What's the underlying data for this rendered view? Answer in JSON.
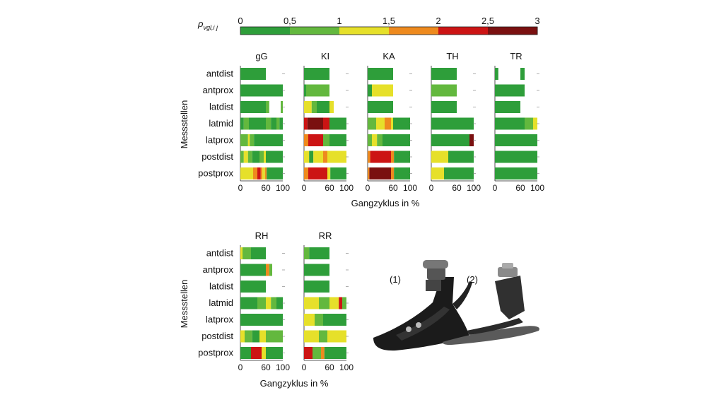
{
  "chart_data": {
    "type": "heatmap",
    "colorbar": {
      "label": "ρvgl,i j",
      "ticks": [
        "0",
        "0,5",
        "1",
        "1,5",
        "2",
        "2,5",
        "3"
      ],
      "colors": [
        "#2e9e3a",
        "#63b83e",
        "#e6e02a",
        "#ee8a1e",
        "#cc1414",
        "#7a1010"
      ]
    },
    "rows": [
      "antdist",
      "antprox",
      "latdist",
      "latmid",
      "latprox",
      "postdist",
      "postprox"
    ],
    "ylabel": "Messstellen",
    "xlabel": "Gangzyklus in %",
    "xticks": [
      "0",
      "60",
      "100"
    ],
    "panels": [
      {
        "title": "gG",
        "rows": [
          [
            [
              0,
              60,
              0
            ]
          ],
          [
            [
              0,
              100,
              0
            ]
          ],
          [
            [
              0,
              60,
              0
            ],
            [
              60,
              68,
              1
            ],
            [
              68,
              95,
              null
            ],
            [
              95,
              100,
              1
            ]
          ],
          [
            [
              0,
              8,
              0
            ],
            [
              8,
              20,
              1
            ],
            [
              20,
              60,
              0
            ],
            [
              60,
              72,
              1
            ],
            [
              72,
              85,
              0
            ],
            [
              85,
              92,
              1
            ],
            [
              92,
              100,
              0
            ]
          ],
          [
            [
              0,
              18,
              1
            ],
            [
              18,
              22,
              2
            ],
            [
              22,
              32,
              1
            ],
            [
              32,
              60,
              0
            ],
            [
              60,
              100,
              0
            ]
          ],
          [
            [
              0,
              8,
              1
            ],
            [
              8,
              18,
              2
            ],
            [
              18,
              28,
              1
            ],
            [
              28,
              45,
              0
            ],
            [
              45,
              55,
              1
            ],
            [
              55,
              60,
              2
            ],
            [
              60,
              100,
              0
            ]
          ],
          [
            [
              0,
              30,
              2
            ],
            [
              30,
              40,
              3
            ],
            [
              40,
              48,
              4
            ],
            [
              48,
              52,
              3
            ],
            [
              52,
              58,
              2
            ],
            [
              58,
              62,
              3
            ],
            [
              62,
              100,
              0
            ]
          ]
        ]
      },
      {
        "title": "KI",
        "rows": [
          [
            [
              0,
              60,
              0
            ]
          ],
          [
            [
              0,
              5,
              0
            ],
            [
              5,
              60,
              1
            ],
            [
              60,
              100,
              null
            ]
          ],
          [
            [
              0,
              18,
              2
            ],
            [
              18,
              30,
              1
            ],
            [
              30,
              60,
              0
            ],
            [
              60,
              70,
              2
            ],
            [
              70,
              100,
              null
            ]
          ],
          [
            [
              0,
              8,
              4
            ],
            [
              8,
              45,
              5
            ],
            [
              45,
              60,
              4
            ],
            [
              60,
              100,
              0
            ]
          ],
          [
            [
              0,
              10,
              3
            ],
            [
              10,
              45,
              4
            ],
            [
              45,
              60,
              1
            ],
            [
              60,
              100,
              0
            ]
          ],
          [
            [
              0,
              12,
              2
            ],
            [
              12,
              22,
              0
            ],
            [
              22,
              45,
              2
            ],
            [
              45,
              55,
              3
            ],
            [
              55,
              100,
              2
            ]
          ],
          [
            [
              0,
              10,
              3
            ],
            [
              10,
              55,
              4
            ],
            [
              55,
              62,
              2
            ],
            [
              62,
              100,
              0
            ]
          ]
        ]
      },
      {
        "title": "KA",
        "rows": [
          [
            [
              0,
              60,
              0
            ]
          ],
          [
            [
              0,
              10,
              0
            ],
            [
              10,
              60,
              2
            ],
            [
              60,
              100,
              null
            ]
          ],
          [
            [
              0,
              60,
              0
            ],
            [
              60,
              100,
              null
            ]
          ],
          [
            [
              0,
              20,
              1
            ],
            [
              20,
              40,
              2
            ],
            [
              40,
              55,
              3
            ],
            [
              55,
              60,
              2
            ],
            [
              60,
              100,
              0
            ]
          ],
          [
            [
              0,
              10,
              1
            ],
            [
              10,
              22,
              2
            ],
            [
              22,
              35,
              1
            ],
            [
              35,
              60,
              0
            ],
            [
              60,
              100,
              0
            ]
          ],
          [
            [
              0,
              6,
              3
            ],
            [
              6,
              55,
              4
            ],
            [
              55,
              62,
              3
            ],
            [
              62,
              100,
              0
            ]
          ],
          [
            [
              0,
              4,
              3
            ],
            [
              4,
              55,
              5
            ],
            [
              55,
              62,
              3
            ],
            [
              62,
              100,
              0
            ]
          ]
        ]
      },
      {
        "title": "TH",
        "rows": [
          [
            [
              0,
              60,
              0
            ]
          ],
          [
            [
              0,
              60,
              1
            ],
            [
              60,
              100,
              null
            ]
          ],
          [
            [
              0,
              60,
              0
            ],
            [
              60,
              100,
              null
            ]
          ],
          [
            [
              0,
              100,
              0
            ]
          ],
          [
            [
              0,
              90,
              0
            ],
            [
              90,
              100,
              5
            ]
          ],
          [
            [
              0,
              40,
              2
            ],
            [
              40,
              100,
              0
            ]
          ],
          [
            [
              0,
              30,
              2
            ],
            [
              30,
              100,
              0
            ]
          ]
        ]
      },
      {
        "title": "TR",
        "rows": [
          [
            [
              0,
              8,
              0
            ],
            [
              8,
              60,
              null
            ],
            [
              60,
              70,
              0
            ],
            [
              70,
              100,
              null
            ]
          ],
          [
            [
              0,
              70,
              0
            ],
            [
              70,
              100,
              null
            ]
          ],
          [
            [
              0,
              60,
              0
            ],
            [
              60,
              100,
              null
            ]
          ],
          [
            [
              0,
              70,
              0
            ],
            [
              70,
              90,
              1
            ],
            [
              90,
              100,
              2
            ]
          ],
          [
            [
              0,
              100,
              0
            ]
          ],
          [
            [
              0,
              100,
              0
            ]
          ],
          [
            [
              0,
              100,
              0
            ]
          ]
        ]
      },
      {
        "title": "RH",
        "rows": [
          [
            [
              0,
              5,
              2
            ],
            [
              5,
              25,
              1
            ],
            [
              25,
              60,
              0
            ],
            [
              60,
              100,
              null
            ]
          ],
          [
            [
              0,
              60,
              0
            ],
            [
              60,
              68,
              3
            ],
            [
              68,
              75,
              1
            ],
            [
              75,
              100,
              null
            ]
          ],
          [
            [
              0,
              60,
              0
            ],
            [
              60,
              100,
              null
            ]
          ],
          [
            [
              0,
              40,
              0
            ],
            [
              40,
              60,
              1
            ],
            [
              60,
              72,
              2
            ],
            [
              72,
              85,
              1
            ],
            [
              85,
              100,
              0
            ]
          ],
          [
            [
              0,
              100,
              0
            ]
          ],
          [
            [
              0,
              10,
              2
            ],
            [
              10,
              28,
              1
            ],
            [
              28,
              45,
              0
            ],
            [
              45,
              60,
              2
            ],
            [
              60,
              100,
              1
            ]
          ],
          [
            [
              0,
              25,
              0
            ],
            [
              25,
              50,
              4
            ],
            [
              50,
              60,
              2
            ],
            [
              60,
              100,
              0
            ]
          ]
        ]
      },
      {
        "title": "RR",
        "rows": [
          [
            [
              0,
              12,
              1
            ],
            [
              12,
              60,
              0
            ],
            [
              60,
              100,
              null
            ]
          ],
          [
            [
              0,
              60,
              0
            ],
            [
              60,
              100,
              null
            ]
          ],
          [
            [
              0,
              60,
              0
            ],
            [
              60,
              100,
              null
            ]
          ],
          [
            [
              0,
              35,
              2
            ],
            [
              35,
              60,
              1
            ],
            [
              60,
              82,
              2
            ],
            [
              82,
              90,
              4
            ],
            [
              90,
              100,
              1
            ]
          ],
          [
            [
              0,
              25,
              2
            ],
            [
              25,
              45,
              1
            ],
            [
              45,
              100,
              0
            ]
          ],
          [
            [
              0,
              35,
              2
            ],
            [
              35,
              55,
              1
            ],
            [
              55,
              100,
              2
            ]
          ],
          [
            [
              0,
              20,
              4
            ],
            [
              20,
              40,
              1
            ],
            [
              40,
              48,
              3
            ],
            [
              48,
              100,
              0
            ]
          ]
        ]
      }
    ]
  },
  "photo": {
    "label_1": "(1)",
    "label_2": "(2)"
  }
}
